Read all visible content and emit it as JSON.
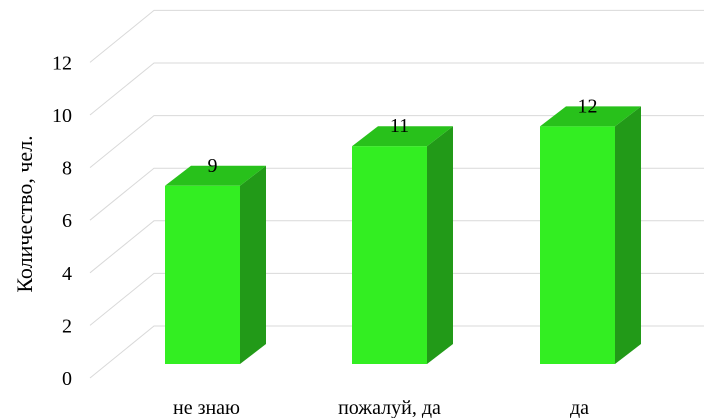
{
  "chart_data": {
    "type": "bar",
    "style": "3d-column",
    "categories": [
      "не знаю",
      "пожалуй, да",
      "да"
    ],
    "values": [
      9,
      11,
      12
    ],
    "data_labels": [
      "9",
      "11",
      "12"
    ],
    "title": "",
    "xlabel": "",
    "ylabel": "Количество, чел.",
    "ylim": [
      0,
      12
    ],
    "yticks": [
      "0",
      "2",
      "4",
      "6",
      "8",
      "10",
      "12"
    ],
    "grid": true,
    "legend": "none",
    "colors": {
      "bar_front": "#33ee22",
      "bar_side": "#229a18",
      "bar_top": "#28c11b",
      "grid": "#d9d9d9"
    }
  }
}
